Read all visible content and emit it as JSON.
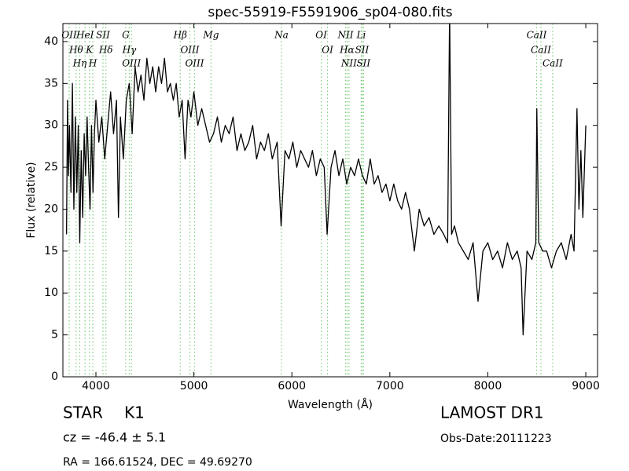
{
  "chart_data": {
    "type": "line",
    "title": "spec-55919-F5591906_sp04-080.fits",
    "x_label": "Wavelength (Å)",
    "y_label": "Flux (relative)",
    "xlim": [
      3663,
      9120
    ],
    "ylim": [
      0,
      42.15
    ],
    "xticks": [
      4000,
      5000,
      6000,
      7000,
      8000,
      9000
    ],
    "yticks": [
      0,
      5,
      10,
      15,
      20,
      25,
      30,
      35,
      40
    ],
    "x": [
      3700,
      3710,
      3720,
      3730,
      3745,
      3760,
      3775,
      3790,
      3805,
      3820,
      3835,
      3850,
      3865,
      3880,
      3895,
      3910,
      3925,
      3940,
      3955,
      3970,
      3985,
      4000,
      4030,
      4060,
      4090,
      4120,
      4150,
      4180,
      4210,
      4230,
      4250,
      4280,
      4310,
      4340,
      4370,
      4400,
      4430,
      4460,
      4490,
      4520,
      4550,
      4580,
      4610,
      4640,
      4670,
      4700,
      4730,
      4760,
      4790,
      4820,
      4850,
      4880,
      4910,
      4940,
      4970,
      5000,
      5040,
      5080,
      5120,
      5160,
      5200,
      5240,
      5280,
      5320,
      5360,
      5400,
      5440,
      5480,
      5520,
      5560,
      5600,
      5640,
      5680,
      5720,
      5760,
      5800,
      5850,
      5890,
      5930,
      5970,
      6010,
      6050,
      6090,
      6130,
      6170,
      6210,
      6250,
      6290,
      6330,
      6360,
      6400,
      6440,
      6480,
      6520,
      6560,
      6600,
      6640,
      6680,
      6720,
      6760,
      6800,
      6840,
      6880,
      6920,
      6960,
      7000,
      7040,
      7080,
      7120,
      7160,
      7200,
      7250,
      7300,
      7350,
      7400,
      7450,
      7500,
      7550,
      7590,
      7610,
      7630,
      7660,
      7700,
      7750,
      7800,
      7850,
      7900,
      7950,
      8000,
      8050,
      8100,
      8150,
      8200,
      8250,
      8300,
      8340,
      8360,
      8400,
      8450,
      8490,
      8500,
      8520,
      8560,
      8600,
      8650,
      8700,
      8750,
      8800,
      8850,
      8880,
      8910,
      8930,
      8950,
      8970,
      9000
    ],
    "series": [
      {
        "color": "#000000",
        "values": [
          17,
          33,
          24,
          30,
          22,
          35,
          20,
          31,
          22,
          30,
          16,
          27,
          19,
          29,
          24,
          31,
          25,
          20,
          30,
          22,
          29,
          33,
          28,
          31,
          26,
          30,
          34,
          29,
          33,
          19,
          31,
          26,
          33,
          35,
          29,
          37,
          34,
          36,
          33,
          38,
          35,
          37,
          34,
          37,
          35,
          38,
          34,
          35,
          33,
          35,
          31,
          33,
          26,
          33,
          31,
          34,
          30,
          32,
          30,
          28,
          29,
          31,
          28,
          30,
          29,
          31,
          27,
          29,
          27,
          28,
          30,
          26,
          28,
          27,
          29,
          26,
          28,
          18,
          27,
          26,
          28,
          25,
          27,
          26,
          25,
          27,
          24,
          26,
          25,
          17,
          25,
          27,
          24,
          26,
          23,
          25,
          24,
          26,
          24,
          23,
          26,
          23,
          24,
          22,
          23,
          21,
          23,
          21,
          20,
          22,
          20,
          15,
          20,
          18,
          19,
          17,
          18,
          17,
          16,
          44,
          17,
          18,
          16,
          15,
          14,
          16,
          9,
          15,
          16,
          14,
          15,
          13,
          16,
          14,
          15,
          13,
          5,
          15,
          14,
          16,
          32,
          16,
          15,
          15,
          13,
          15,
          16,
          14,
          17,
          15,
          32,
          20,
          27,
          19,
          30
        ]
      }
    ],
    "annotation_color": "#7ccd7c",
    "annotations": [
      {
        "label": "OII",
        "x": 3727
      },
      {
        "label": "Hθ",
        "x": 3798
      },
      {
        "label": "Hη",
        "x": 3835
      },
      {
        "label": "HeI",
        "x": 3889
      },
      {
        "label": "K",
        "x": 3934
      },
      {
        "label": "H",
        "x": 3969
      },
      {
        "label": "SII",
        "x": 4072
      },
      {
        "label": "Hδ",
        "x": 4102
      },
      {
        "label": "G",
        "x": 4304
      },
      {
        "label": "Hγ",
        "x": 4341
      },
      {
        "label": "OIII",
        "x": 4363
      },
      {
        "label": "Hβ",
        "x": 4861
      },
      {
        "label": "OIII",
        "x": 4959
      },
      {
        "label": "OIII",
        "x": 5007
      },
      {
        "label": "Mg",
        "x": 5175
      },
      {
        "label": "Na",
        "x": 5894
      },
      {
        "label": "OI",
        "x": 6300
      },
      {
        "label": "OI",
        "x": 6364
      },
      {
        "label": "NII",
        "x": 6548
      },
      {
        "label": "Hα",
        "x": 6563
      },
      {
        "label": "NII",
        "x": 6583
      },
      {
        "label": "Li",
        "x": 6708
      },
      {
        "label": "SII",
        "x": 6716
      },
      {
        "label": "SII",
        "x": 6731
      },
      {
        "label": "CaII",
        "x": 8498
      },
      {
        "label": "CaII",
        "x": 8542
      },
      {
        "label": "CaII",
        "x": 8662
      }
    ]
  },
  "footer": {
    "object_class": "STAR",
    "subclass": "K1",
    "redshift": "cz = -46.4 ± 5.1",
    "coordinates": "RA = 166.61524, DEC = 49.69270",
    "survey": "LAMOST DR1",
    "obs_date": "Obs-Date:20111223"
  }
}
